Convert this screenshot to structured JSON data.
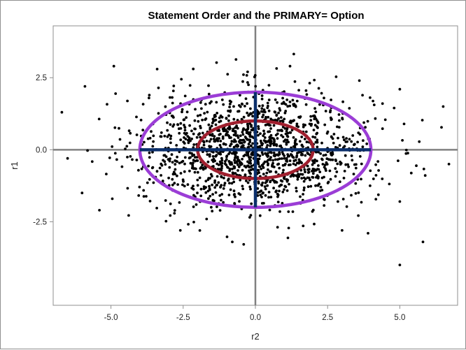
{
  "chart_data": {
    "type": "scatter",
    "title": "Statement Order and the PRIMARY= Option",
    "xlabel": "r2",
    "ylabel": "r1",
    "xlim": [
      -7.0,
      7.0
    ],
    "ylim": [
      -5.4,
      4.3
    ],
    "xticks": [
      -5.0,
      -2.5,
      0.0,
      2.5,
      5.0
    ],
    "yticks": [
      -2.5,
      0.0,
      2.5
    ],
    "tick_labels_x": [
      "-5.0",
      "-2.5",
      "0.0",
      "2.5",
      "5.0"
    ],
    "tick_labels_y": [
      "-2.5",
      "0.0",
      "2.5"
    ],
    "grid": false,
    "reference_lines": {
      "x": 0,
      "y": 0,
      "color": "#808080"
    },
    "scatter": {
      "name": "r1 vs r2",
      "n_points": 1500,
      "x_std": 2.0,
      "y_std": 1.0,
      "color": "#000000",
      "sample_outliers": [
        {
          "x": -6.7,
          "y": 1.3
        },
        {
          "x": -5.9,
          "y": 2.2
        },
        {
          "x": -4.9,
          "y": 2.9
        },
        {
          "x": -3.4,
          "y": 2.8
        },
        {
          "x": 1.2,
          "y": 2.9
        },
        {
          "x": 3.6,
          "y": 2.4
        },
        {
          "x": 4.4,
          "y": 1.6
        },
        {
          "x": 5.0,
          "y": 2.1
        },
        {
          "x": 6.5,
          "y": 1.5
        },
        {
          "x": 6.7,
          "y": -0.5
        },
        {
          "x": 5.0,
          "y": -1.8
        },
        {
          "x": 5.8,
          "y": -3.2
        },
        {
          "x": 5.0,
          "y": -4.0
        },
        {
          "x": 3.9,
          "y": -2.9
        },
        {
          "x": -0.8,
          "y": -3.2
        },
        {
          "x": -5.4,
          "y": -2.1
        },
        {
          "x": -6.0,
          "y": -1.5
        },
        {
          "x": -6.5,
          "y": -0.3
        },
        {
          "x": 3.0,
          "y": -2.8
        },
        {
          "x": -2.6,
          "y": -2.8
        }
      ]
    },
    "ellipses": [
      {
        "name": "outer",
        "cx": 0,
        "cy": 0,
        "rx": 4.0,
        "ry": 2.0,
        "color": "#9b3dd6"
      },
      {
        "name": "inner",
        "cx": 0,
        "cy": 0,
        "rx": 2.0,
        "ry": 1.0,
        "color": "#a01f2e"
      }
    ],
    "axes_segments": [
      {
        "name": "primary-axis",
        "x": [
          -4.0,
          4.0
        ],
        "y": [
          0,
          0
        ],
        "color": "#0b2f6b"
      },
      {
        "name": "secondary-axis",
        "x": [
          0,
          0
        ],
        "y": [
          -2.0,
          2.0
        ],
        "color": "#0b2f6b"
      }
    ]
  }
}
